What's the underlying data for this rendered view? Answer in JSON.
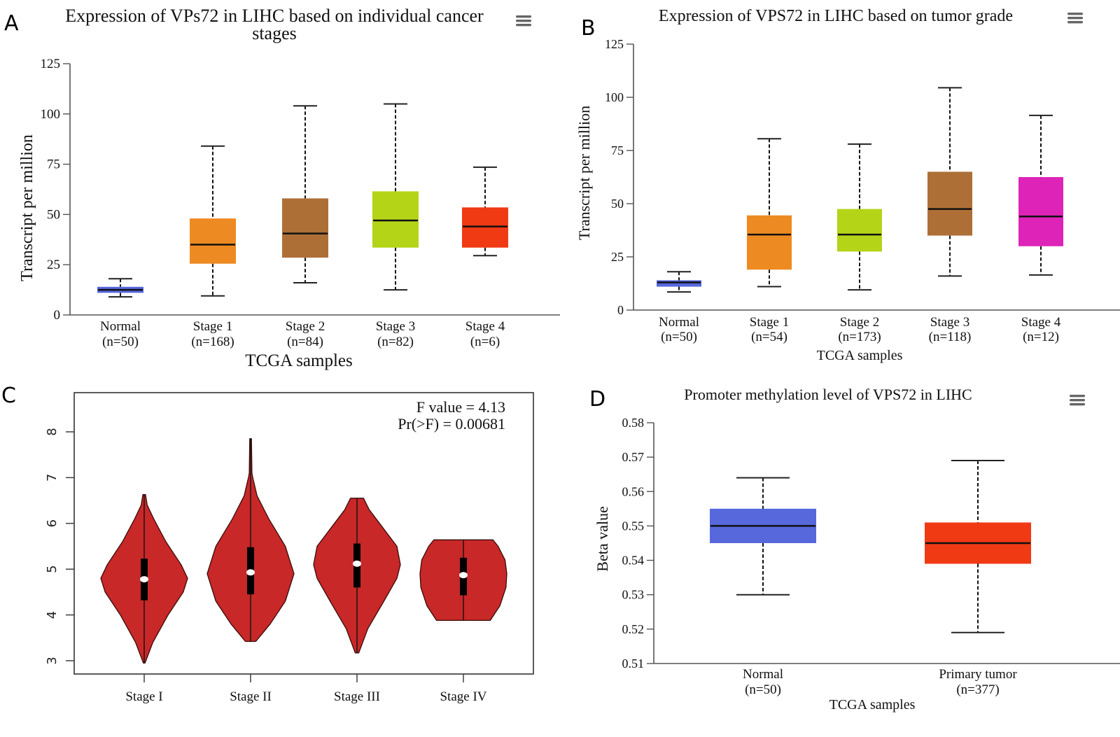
{
  "figure": {
    "panels": [
      "A",
      "B",
      "C",
      "D"
    ]
  },
  "chart_data": [
    {
      "panel": "A",
      "type": "boxplot",
      "title_lines": [
        "Expression of VPs72 in LIHC based on individual cancer",
        "stages"
      ],
      "xlabel": "TCGA samples",
      "ylabel": "Transcript per million",
      "ylim": [
        0,
        125
      ],
      "yticks": [
        0,
        25,
        50,
        75,
        100,
        125
      ],
      "menu_icon": "hamburger-menu-icon",
      "categories": [
        {
          "label": "Normal",
          "n": "(n=50)",
          "color": "#5668DC",
          "min": 9,
          "q1": 11,
          "median": 12.5,
          "q3": 14,
          "max": 18
        },
        {
          "label": "Stage 1",
          "n": "(n=168)",
          "color": "#EE8A22",
          "min": 9.5,
          "q1": 25.5,
          "median": 35,
          "q3": 48,
          "max": 84
        },
        {
          "label": "Stage 2",
          "n": "(n=84)",
          "color": "#AE6F37",
          "min": 16,
          "q1": 28.5,
          "median": 40.5,
          "q3": 58,
          "max": 104
        },
        {
          "label": "Stage 3",
          "n": "(n=82)",
          "color": "#B4D418",
          "min": 12.5,
          "q1": 33.5,
          "median": 47,
          "q3": 61.5,
          "max": 105
        },
        {
          "label": "Stage 4",
          "n": "(n=6)",
          "color": "#F03A14",
          "min": 29.5,
          "q1": 33.5,
          "median": 44,
          "q3": 53.5,
          "max": 73.5
        }
      ]
    },
    {
      "panel": "B",
      "type": "boxplot",
      "title_lines": [
        "Expression of VPS72 in LIHC based on tumor grade"
      ],
      "xlabel": "TCGA samples",
      "ylabel": "Transcript per million",
      "ylim": [
        0,
        125
      ],
      "yticks": [
        0,
        25,
        50,
        75,
        100,
        125
      ],
      "menu_icon": "hamburger-menu-icon",
      "categories": [
        {
          "label": "Normal",
          "n": "(n=50)",
          "color": "#5668DC",
          "min": 8.5,
          "q1": 11,
          "median": 13,
          "q3": 14,
          "max": 18
        },
        {
          "label": "Stage 1",
          "n": "(n=54)",
          "color": "#EE8A22",
          "min": 11,
          "q1": 19,
          "median": 35.5,
          "q3": 44.5,
          "max": 80.5
        },
        {
          "label": "Stage 2",
          "n": "(n=173)",
          "color": "#B4D418",
          "min": 9.5,
          "q1": 27.5,
          "median": 35.5,
          "q3": 47.5,
          "max": 78
        },
        {
          "label": "Stage 3",
          "n": "(n=118)",
          "color": "#AE6F37",
          "min": 16,
          "q1": 35,
          "median": 47.5,
          "q3": 65,
          "max": 104.5
        },
        {
          "label": "Stage 4",
          "n": "(n=12)",
          "color": "#DE24B8",
          "min": 16.5,
          "q1": 30,
          "median": 44,
          "q3": 62.5,
          "max": 91.5
        }
      ]
    },
    {
      "panel": "C",
      "type": "violin",
      "title_lines": [],
      "xlabel": "",
      "ylabel": "",
      "ylim": [
        2.9,
        9.0
      ],
      "yticks": [
        3,
        4,
        5,
        6,
        7,
        8
      ],
      "annotation": [
        "F value = 4.13",
        "Pr(>F) = 0.00681"
      ],
      "fill_color": "#C82828",
      "categories": [
        {
          "label": "Stage I",
          "min": 2.95,
          "q1": 4.32,
          "median": 4.78,
          "q3": 5.23,
          "max": 6.63,
          "density": [
            [
              2.95,
              0.02
            ],
            [
              3.4,
              0.2
            ],
            [
              4.0,
              0.55
            ],
            [
              4.5,
              0.9
            ],
            [
              4.8,
              1.0
            ],
            [
              5.1,
              0.85
            ],
            [
              5.6,
              0.5
            ],
            [
              6.1,
              0.22
            ],
            [
              6.4,
              0.07
            ],
            [
              6.63,
              0.03
            ]
          ]
        },
        {
          "label": "Stage II",
          "min": 3.42,
          "q1": 4.45,
          "median": 4.93,
          "q3": 5.48,
          "max": 7.85,
          "density": [
            [
              3.42,
              0.12
            ],
            [
              3.8,
              0.45
            ],
            [
              4.3,
              0.8
            ],
            [
              4.9,
              1.0
            ],
            [
              5.5,
              0.8
            ],
            [
              6.1,
              0.42
            ],
            [
              6.6,
              0.15
            ],
            [
              7.0,
              0.05
            ],
            [
              7.1,
              0.03
            ],
            [
              7.85,
              0.02
            ]
          ]
        },
        {
          "label": "Stage III",
          "min": 3.17,
          "q1": 4.6,
          "median": 5.12,
          "q3": 5.56,
          "max": 6.55,
          "density": [
            [
              3.17,
              0.04
            ],
            [
              3.7,
              0.25
            ],
            [
              4.3,
              0.62
            ],
            [
              4.8,
              0.92
            ],
            [
              5.1,
              1.0
            ],
            [
              5.5,
              0.92
            ],
            [
              5.9,
              0.6
            ],
            [
              6.3,
              0.28
            ],
            [
              6.55,
              0.15
            ]
          ]
        },
        {
          "label": "Stage IV",
          "min": 3.88,
          "q1": 4.43,
          "median": 4.87,
          "q3": 5.25,
          "max": 5.64,
          "density": [
            [
              3.88,
              0.62
            ],
            [
              4.2,
              0.84
            ],
            [
              4.6,
              0.98
            ],
            [
              4.9,
              1.0
            ],
            [
              5.2,
              0.96
            ],
            [
              5.5,
              0.8
            ],
            [
              5.64,
              0.68
            ]
          ]
        }
      ]
    },
    {
      "panel": "D",
      "type": "boxplot",
      "title_lines": [
        "Promoter methylation level of VPS72 in LIHC"
      ],
      "xlabel": "TCGA samples",
      "ylabel": "Beta value",
      "ylim": [
        0.51,
        0.58
      ],
      "yticks": [
        0.51,
        0.52,
        0.53,
        0.54,
        0.55,
        0.56,
        0.57,
        0.58
      ],
      "ytick_labels": [
        "0.51",
        "0.52",
        "0.53",
        "0.54",
        "0.55",
        "0.56",
        "0.57",
        "0.58"
      ],
      "menu_icon": "hamburger-menu-icon",
      "categories": [
        {
          "label": "Normal",
          "n": "(n=50)",
          "color": "#5668DC",
          "min": 0.53,
          "q1": 0.545,
          "median": 0.55,
          "q3": 0.555,
          "max": 0.564
        },
        {
          "label": "Primary tumor",
          "n": "(n=377)",
          "color": "#F03A14",
          "min": 0.519,
          "q1": 0.539,
          "median": 0.545,
          "q3": 0.551,
          "max": 0.569
        }
      ]
    }
  ]
}
